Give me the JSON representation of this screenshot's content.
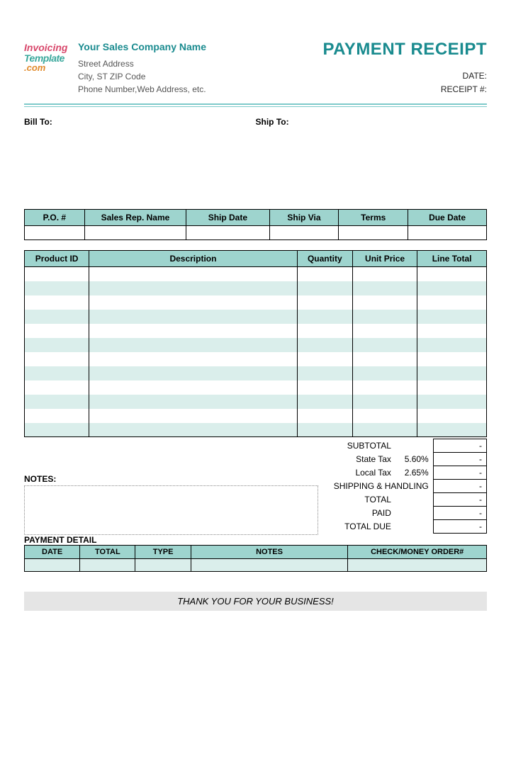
{
  "logo": {
    "line1": "Invoicing",
    "line2": "Template",
    "line3": ".com"
  },
  "company": {
    "name": "Your Sales Company Name",
    "street": "Street Address",
    "city": "City, ST  ZIP Code",
    "contact": "Phone Number,Web Address, etc."
  },
  "title": "PAYMENT RECEIPT",
  "meta": {
    "date_label": "DATE:",
    "receipt_label": "RECEIPT #:"
  },
  "addresses": {
    "bill_to": "Bill To:",
    "ship_to": "Ship To:"
  },
  "order_table": {
    "columns": [
      "P.O. #",
      "Sales Rep. Name",
      "Ship Date",
      "Ship Via",
      "Terms",
      "Due Date"
    ],
    "widths": [
      "13%",
      "22%",
      "18%",
      "15%",
      "15%",
      "17%"
    ]
  },
  "items_table": {
    "columns": [
      "Product ID",
      "Description",
      "Quantity",
      "Unit Price",
      "Line Total"
    ],
    "widths": [
      "14%",
      "45%",
      "12%",
      "14%",
      "15%"
    ],
    "row_count": 12,
    "stripe_color": "#daeeeb",
    "header_bg": "#9ed4ce"
  },
  "summary": {
    "rows": [
      {
        "label": "SUBTOTAL",
        "pct": "",
        "val": "-"
      },
      {
        "label": "State Tax",
        "pct": "5.60%",
        "val": "-"
      },
      {
        "label": "Local Tax",
        "pct": "2.65%",
        "val": "-"
      },
      {
        "label": "SHIPPING & HANDLING",
        "pct": "",
        "val": "-",
        "span": true
      },
      {
        "label": "TOTAL",
        "pct": "",
        "val": "-"
      },
      {
        "label": "PAID",
        "pct": "",
        "val": "-"
      },
      {
        "label": "TOTAL DUE",
        "pct": "",
        "val": "-"
      }
    ]
  },
  "notes_label": "NOTES:",
  "payment_detail": {
    "title": "PAYMENT DETAIL",
    "columns": [
      "DATE",
      "TOTAL",
      "TYPE",
      "NOTES",
      "CHECK/MONEY ORDER#"
    ],
    "widths": [
      "12%",
      "12%",
      "12%",
      "34%",
      "30%"
    ],
    "row_count": 1
  },
  "thanks": "THANK YOU FOR YOUR BUSINESS!",
  "colors": {
    "accent": "#1a8b8f",
    "header_bg": "#9ed4ce",
    "stripe": "#daeeeb",
    "rule": "#7dc9c9",
    "footer_bg": "#e5e5e5"
  }
}
